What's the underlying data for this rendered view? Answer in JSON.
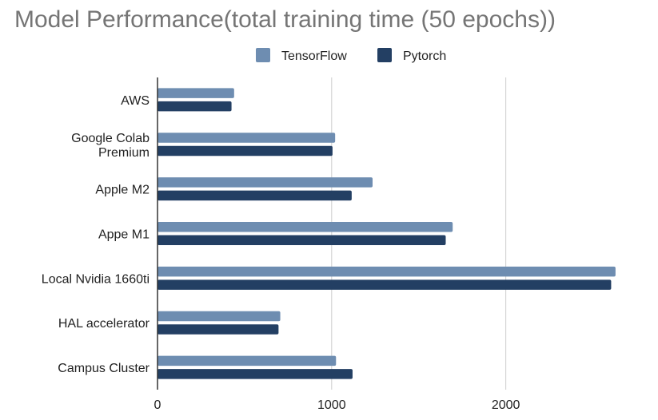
{
  "chart_data": {
    "type": "bar",
    "orientation": "horizontal",
    "title": "Model Performance(total training time (50 epochs))",
    "categories": [
      [
        "AWS"
      ],
      [
        "Google Colab",
        "Premium"
      ],
      [
        "Apple M2"
      ],
      [
        "Appe M1"
      ],
      [
        "Local Nvidia 1660ti"
      ],
      [
        "HAL accelerator"
      ],
      [
        "Campus Cluster"
      ]
    ],
    "series": [
      {
        "name": "TensorFlow",
        "color": "#6e8db1",
        "values": [
          440,
          1020,
          1235,
          1695,
          2630,
          705,
          1025
        ]
      },
      {
        "name": "Pytorch",
        "color": "#233f63",
        "values": [
          425,
          1005,
          1115,
          1655,
          2605,
          695,
          1120
        ]
      }
    ],
    "xlim": [
      0,
      2750
    ],
    "x_ticks": [
      0,
      1000,
      2000
    ],
    "x_tick_labels": [
      "0",
      "1000",
      "2000"
    ],
    "grid": true,
    "legend_position": "top-center"
  }
}
